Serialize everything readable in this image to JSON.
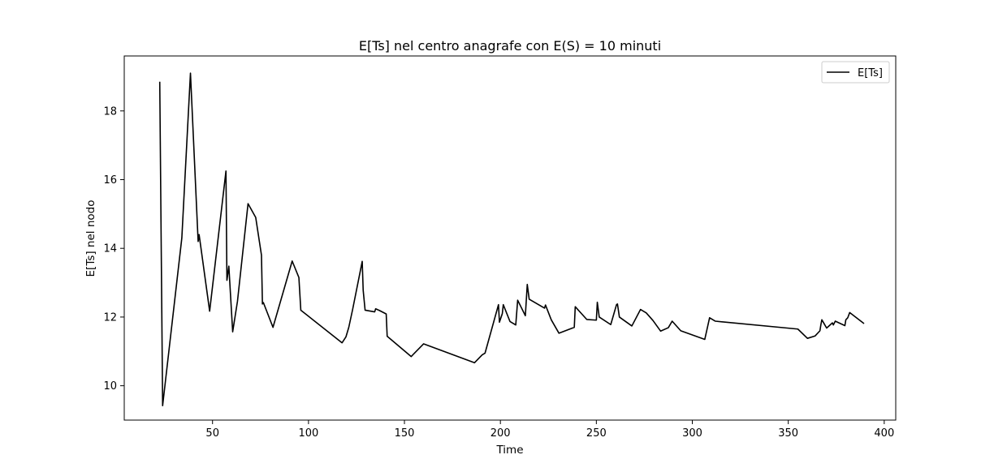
{
  "chart_data": {
    "type": "line",
    "title": "E[Ts] nel centro anagrafe con E(S) = 10 minuti",
    "xlabel": "Time",
    "ylabel": "E[Ts] nel nodo",
    "xlim": [
      4,
      406
    ],
    "ylim": [
      9.0,
      19.6
    ],
    "xticks": [
      50,
      100,
      150,
      200,
      250,
      300,
      350,
      400
    ],
    "yticks": [
      10,
      12,
      14,
      16,
      18
    ],
    "grid": false,
    "legend": {
      "position": "top-right"
    },
    "series": [
      {
        "name": "E[Ts]",
        "color": "#000000",
        "x": [
          22.5,
          24.0,
          34.0,
          38.5,
          42.5,
          43.0,
          43.5,
          48.5,
          57.0,
          57.5,
          58.5,
          60.5,
          63.0,
          68.5,
          72.5,
          75.5,
          76.0,
          76.5,
          81.5,
          91.5,
          95.0,
          96.0,
          117.5,
          119.5,
          121.0,
          123.0,
          128.0,
          128.5,
          129.5,
          134.5,
          135.0,
          137.0,
          140.5,
          141.0,
          153.5,
          160.0,
          186.5,
          190.5,
          192.0,
          199.0,
          199.5,
          201.0,
          201.5,
          205.0,
          208.0,
          209.0,
          213.0,
          214.0,
          215.0,
          223.0,
          223.5,
          226.5,
          230.5,
          238.5,
          239.0,
          245.0,
          250.0,
          250.5,
          251.5,
          257.5,
          260.5,
          261.0,
          262.0,
          268.5,
          273.0,
          276.0,
          279.5,
          283.5,
          287.5,
          289.5,
          294.0,
          306.5,
          309.0,
          312.0,
          355.0,
          360.0,
          364.0,
          366.5,
          367.0,
          367.5,
          370.0,
          373.0,
          373.5,
          374.5,
          379.5,
          380.0,
          381.0,
          382.0,
          389.0,
          389.5
        ],
        "y": [
          18.85,
          9.42,
          14.3,
          19.1,
          14.2,
          14.4,
          14.2,
          12.17,
          16.25,
          13.07,
          13.48,
          11.57,
          12.46,
          15.3,
          14.9,
          13.8,
          12.38,
          12.42,
          11.7,
          13.63,
          13.15,
          12.2,
          11.25,
          11.42,
          11.7,
          12.22,
          13.62,
          12.78,
          12.2,
          12.15,
          12.24,
          12.19,
          12.09,
          11.44,
          10.85,
          11.22,
          10.67,
          10.9,
          10.95,
          12.36,
          11.85,
          12.1,
          12.36,
          11.87,
          11.77,
          12.49,
          12.04,
          12.95,
          12.52,
          12.26,
          12.35,
          11.92,
          11.53,
          11.7,
          12.3,
          11.93,
          11.91,
          12.43,
          12.0,
          11.78,
          12.36,
          12.38,
          12.0,
          11.74,
          12.22,
          12.12,
          11.9,
          11.59,
          11.69,
          11.88,
          11.6,
          11.35,
          11.98,
          11.88,
          11.65,
          11.38,
          11.45,
          11.6,
          11.78,
          11.92,
          11.68,
          11.83,
          11.77,
          11.88,
          11.75,
          11.92,
          11.98,
          12.13,
          11.83,
          11.81
        ]
      }
    ]
  }
}
